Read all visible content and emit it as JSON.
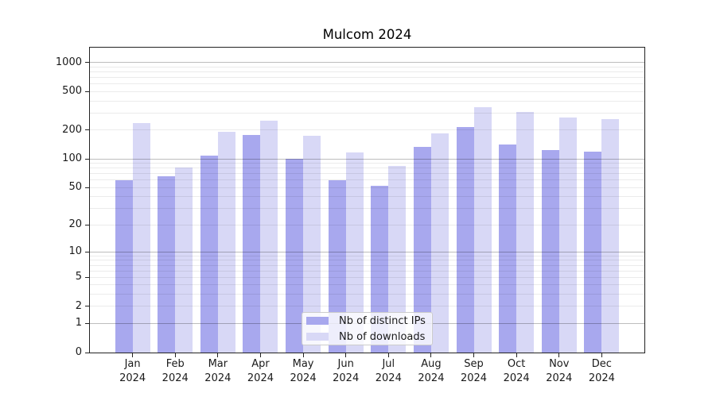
{
  "chart_data": {
    "type": "bar",
    "title": "Mulcom 2024",
    "categories": [
      "Jan 2024",
      "Feb 2024",
      "Mar 2024",
      "Apr 2024",
      "May 2024",
      "Jun 2024",
      "Jul 2024",
      "Aug 2024",
      "Sep 2024",
      "Oct 2024",
      "Nov 2024",
      "Dec 2024"
    ],
    "series": [
      {
        "name": "Nb of distinct IPs",
        "color": "#a8a8ee",
        "values": [
          60,
          66,
          108,
          178,
          100,
          60,
          52,
          134,
          215,
          141,
          124,
          119
        ]
      },
      {
        "name": "Nb of downloads",
        "color": "#d8d8f6",
        "values": [
          238,
          81,
          192,
          250,
          175,
          117,
          85,
          186,
          348,
          307,
          268,
          260
        ]
      }
    ],
    "xlabel": "",
    "ylabel": "",
    "yscale": "log1p",
    "yticks": [
      0,
      1,
      2,
      5,
      10,
      20,
      50,
      100,
      200,
      500,
      1000
    ],
    "ylim": [
      0,
      1430
    ],
    "grid": true,
    "grid_major_color": "rgba(0,0,0,0.26)",
    "grid_minor_color": "rgba(0,0,0,0.08)",
    "legend_position": "lower center",
    "spine_color": "#222222"
  }
}
